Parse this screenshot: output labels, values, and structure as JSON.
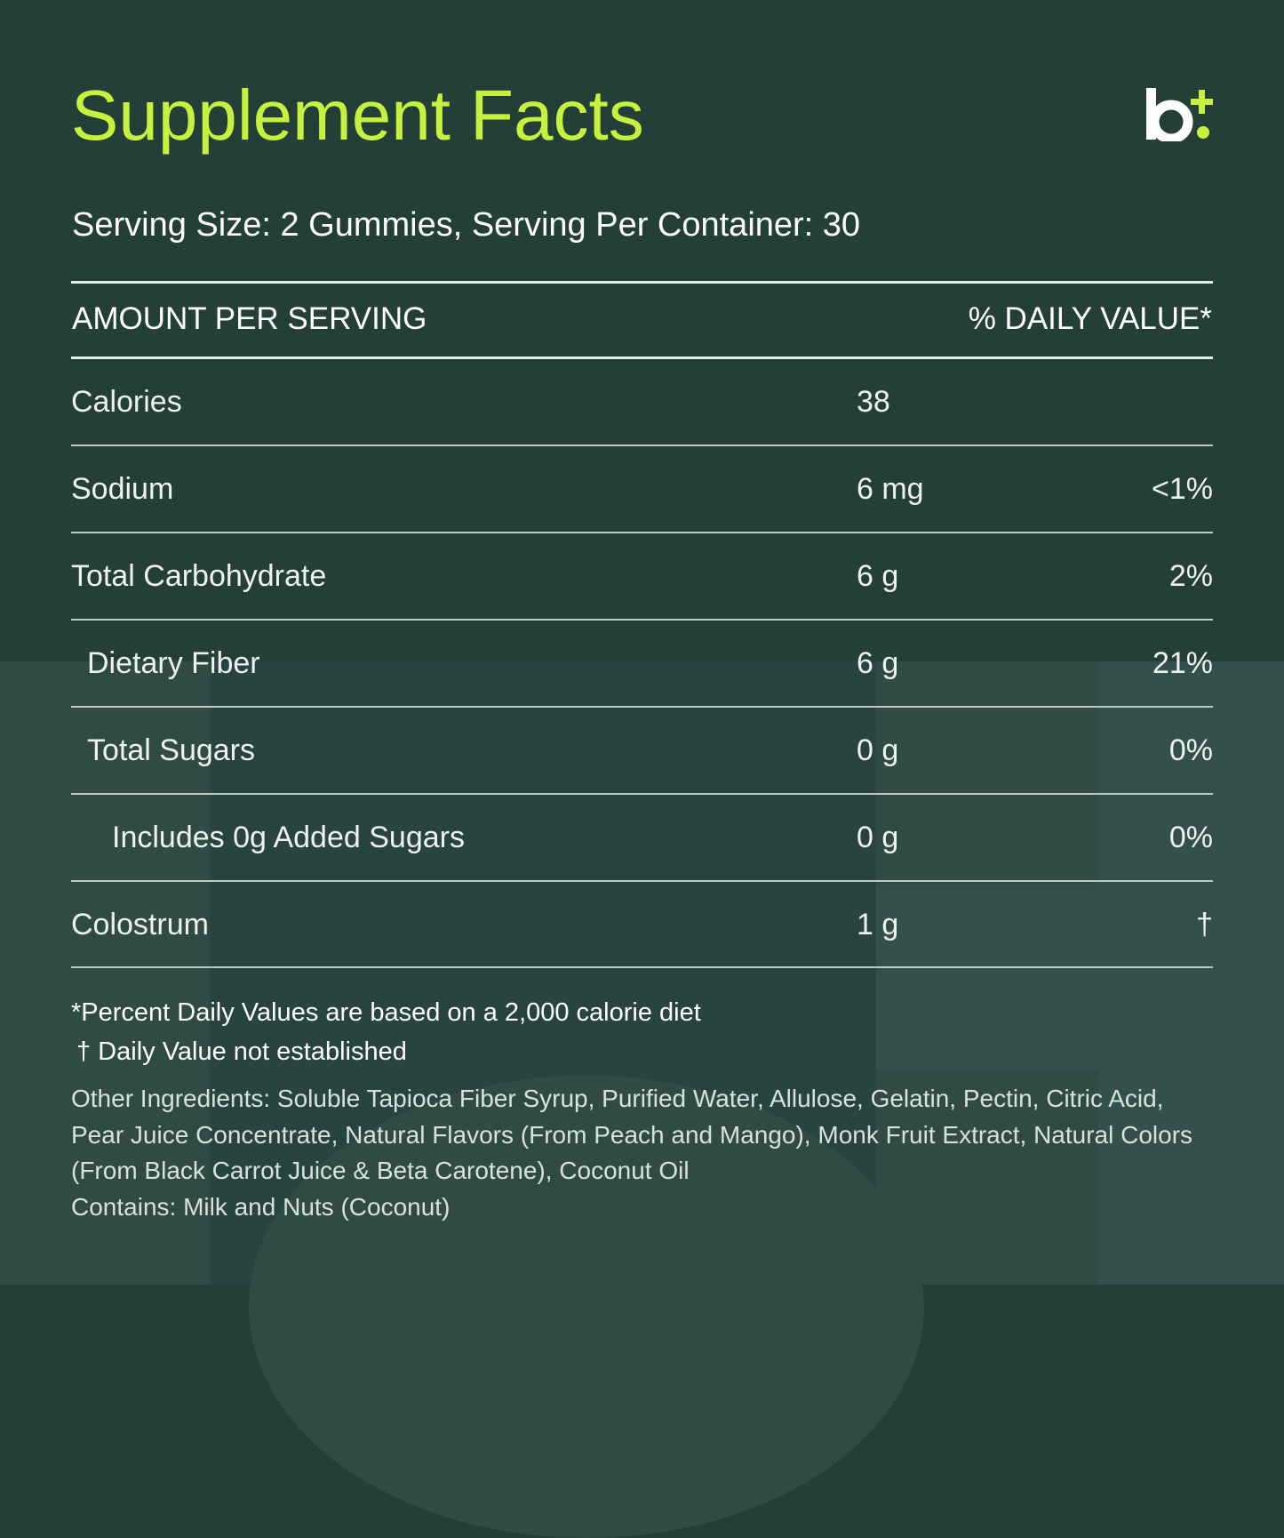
{
  "title": "Supplement Facts",
  "brand": {
    "logo_text": "b",
    "logo_accent": "+"
  },
  "serving": "Serving Size: 2 Gummies, Serving Per Container: 30",
  "table": {
    "header_left": "AMOUNT PER SERVING",
    "header_right": "% DAILY VALUE*",
    "rows": [
      {
        "name": "Calories",
        "amount": "38",
        "dv": ""
      },
      {
        "name": "Sodium",
        "amount": "6 mg",
        "dv": "<1%"
      },
      {
        "name": "Total Carbohydrate",
        "amount": "6 g",
        "dv": "2%"
      },
      {
        "name": "Dietary Fiber",
        "amount": "6 g",
        "dv": "21%"
      },
      {
        "name": "Total Sugars",
        "amount": "0 g",
        "dv": "0%"
      },
      {
        "name": "Includes 0g Added Sugars",
        "amount": "0 g",
        "dv": "0%"
      },
      {
        "name": "Colostrum",
        "amount": "1 g",
        "dv": "†"
      }
    ]
  },
  "footnotes": {
    "daily_value_note": "*Percent Daily Values are based on a 2,000 calorie diet",
    "not_established": "† Daily Value not established"
  },
  "ingredients": {
    "other": "Other Ingredients: Soluble Tapioca Fiber Syrup, Purified Water, Allulose, Gelatin, Pectin, Citric Acid, Pear Juice Concentrate, Natural Flavors (From Peach and Mango), Monk Fruit Extract, Natural Colors (From Black Carrot Juice & Beta Carotene), Coconut Oil",
    "contains": "Contains: Milk and Nuts (Coconut)"
  },
  "colors": {
    "background": "#243f38",
    "accent": "#c6f23f",
    "text": "#ffffff"
  }
}
